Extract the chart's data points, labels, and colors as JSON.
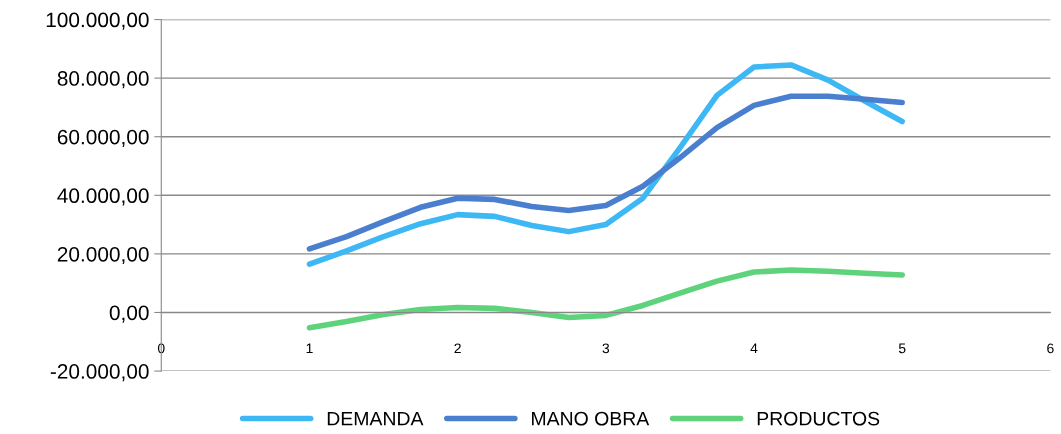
{
  "chart_data": {
    "type": "line",
    "x": [
      1,
      1.25,
      1.5,
      1.75,
      2,
      2.25,
      2.5,
      2.75,
      3,
      3.25,
      3.5,
      3.75,
      4,
      4.25,
      4.5,
      4.75,
      5
    ],
    "series": [
      {
        "name": "DEMANDA",
        "color": "#3db8f5",
        "values": [
          16500,
          21000,
          25900,
          30300,
          33400,
          32800,
          29700,
          27600,
          30000,
          39000,
          56200,
          74100,
          83800,
          84500,
          79300,
          72100,
          65200
        ]
      },
      {
        "name": "MANO OBRA",
        "color": "#4a7fd0",
        "values": [
          21700,
          25900,
          31000,
          35900,
          39000,
          38600,
          36200,
          34800,
          36500,
          43100,
          52800,
          63100,
          70700,
          73800,
          73800,
          72800,
          71700
        ]
      },
      {
        "name": "PRODUCTOS",
        "color": "#5fd27c",
        "values": [
          -5200,
          -3100,
          -700,
          1000,
          1700,
          1400,
          0,
          -1700,
          -1000,
          2400,
          6600,
          10700,
          13800,
          14500,
          14100,
          13400,
          12800
        ]
      }
    ],
    "xlim": [
      0,
      6
    ],
    "xticks": [
      0,
      1,
      2,
      3,
      4,
      5,
      6
    ],
    "ylim": [
      -20000,
      100000
    ],
    "yticks": [
      {
        "value": -20000,
        "label": "-20.000,00"
      },
      {
        "value": 0,
        "label": "0,00"
      },
      {
        "value": 20000,
        "label": "20.000,00"
      },
      {
        "value": 40000,
        "label": "40.000,00"
      },
      {
        "value": 60000,
        "label": "60.000,00"
      },
      {
        "value": 80000,
        "label": "80.000,00"
      },
      {
        "value": 100000,
        "label": "100.000,00"
      }
    ],
    "grid": "y",
    "legend": "bottom",
    "marker": "none",
    "line_style": "solid"
  }
}
